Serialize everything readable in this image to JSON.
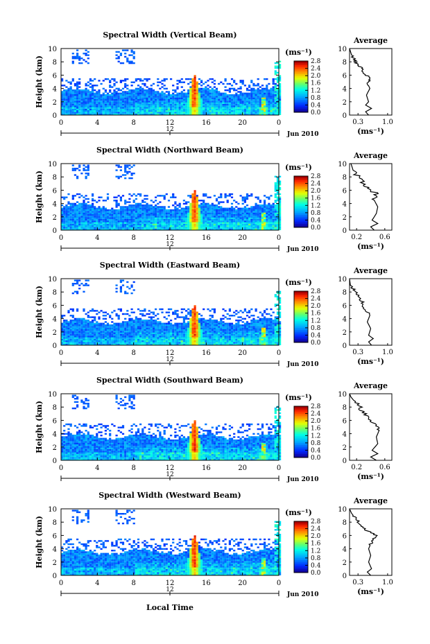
{
  "figure": {
    "xlabel_global": "Local Time",
    "cbar_unit": "(ms⁻¹)",
    "avg_title": "Average",
    "avg_xlabel": "(ms⁻¹)",
    "ylabel": "Height (km)"
  },
  "chart_data": [
    {
      "type": "heatmap",
      "title": "Spectral Width (Vertical Beam)",
      "x": {
        "ticks": [
          "0",
          "4",
          "8",
          "12",
          "16",
          "20",
          "0"
        ],
        "range": [
          0,
          24
        ],
        "unit": "hour"
      },
      "y": {
        "ticks": [
          0,
          2,
          4,
          6,
          8,
          10
        ],
        "range": [
          0,
          10
        ]
      },
      "date_ticks": [
        "12"
      ],
      "date_suffix": "Jun 2010",
      "colorbar": {
        "ticks": [
          "2.8",
          "2.4",
          "2.0",
          "1.6",
          "1.2",
          "0.8",
          "0.4",
          "0.0"
        ],
        "range": [
          0,
          2.8
        ]
      },
      "average": {
        "title": "Average",
        "xticks": [
          "0.3",
          "1.0"
        ],
        "xlim": [
          0.1,
          1.1
        ],
        "ylim": [
          0,
          10
        ],
        "profile": [
          [
            0.55,
            0.0
          ],
          [
            0.48,
            0.5
          ],
          [
            0.62,
            1.0
          ],
          [
            0.48,
            1.5
          ],
          [
            0.55,
            2.0
          ],
          [
            0.5,
            3.0
          ],
          [
            0.58,
            4.0
          ],
          [
            0.52,
            4.8
          ],
          [
            0.6,
            5.5
          ],
          [
            0.45,
            6.2
          ],
          [
            0.4,
            7.0
          ],
          [
            0.3,
            7.5
          ],
          [
            0.22,
            8.2
          ],
          [
            0.15,
            9.0
          ],
          [
            0.1,
            10.0
          ]
        ]
      }
    },
    {
      "type": "heatmap",
      "title": "Spectral Width (Northward Beam)",
      "x": {
        "ticks": [
          "0",
          "4",
          "8",
          "12",
          "16",
          "20",
          "0"
        ],
        "range": [
          0,
          24
        ],
        "unit": "hour"
      },
      "y": {
        "ticks": [
          0,
          2,
          4,
          6,
          8,
          10
        ],
        "range": [
          0,
          10
        ]
      },
      "date_ticks": [
        "12"
      ],
      "date_suffix": "Jun 2010",
      "colorbar": {
        "ticks": [
          "2.8",
          "2.4",
          "2.0",
          "1.6",
          "1.2",
          "0.8",
          "0.4",
          "0.0"
        ],
        "range": [
          0,
          2.8
        ]
      },
      "average": {
        "title": "Average",
        "xticks": [
          "0.2",
          "0.6"
        ],
        "xlim": [
          0.1,
          0.7
        ],
        "ylim": [
          0,
          10
        ],
        "profile": [
          [
            0.45,
            0.0
          ],
          [
            0.4,
            0.5
          ],
          [
            0.5,
            1.0
          ],
          [
            0.42,
            1.5
          ],
          [
            0.48,
            2.5
          ],
          [
            0.5,
            3.5
          ],
          [
            0.45,
            4.5
          ],
          [
            0.48,
            5.5
          ],
          [
            0.35,
            6.3
          ],
          [
            0.3,
            7.0
          ],
          [
            0.22,
            8.0
          ],
          [
            0.15,
            9.0
          ],
          [
            0.12,
            10.0
          ]
        ]
      }
    },
    {
      "type": "heatmap",
      "title": "Spectral Width (Eastward Beam)",
      "x": {
        "ticks": [
          "0",
          "4",
          "8",
          "12",
          "16",
          "20",
          "0"
        ],
        "range": [
          0,
          24
        ],
        "unit": "hour"
      },
      "y": {
        "ticks": [
          0,
          2,
          4,
          6,
          8,
          10
        ],
        "range": [
          0,
          10
        ]
      },
      "date_ticks": [
        "12"
      ],
      "date_suffix": "Jun 2010",
      "colorbar": {
        "ticks": [
          "2.8",
          "2.4",
          "2.0",
          "1.6",
          "1.2",
          "0.8",
          "0.4",
          "0.0"
        ],
        "range": [
          0,
          2.8
        ]
      },
      "average": {
        "title": "Average",
        "xticks": [
          "0.3",
          "1.0"
        ],
        "xlim": [
          0.1,
          1.1
        ],
        "ylim": [
          0,
          10
        ],
        "profile": [
          [
            0.62,
            0.0
          ],
          [
            0.55,
            0.5
          ],
          [
            0.66,
            1.0
          ],
          [
            0.55,
            1.5
          ],
          [
            0.6,
            2.5
          ],
          [
            0.52,
            3.5
          ],
          [
            0.58,
            4.5
          ],
          [
            0.45,
            5.5
          ],
          [
            0.4,
            6.5
          ],
          [
            0.3,
            7.5
          ],
          [
            0.22,
            8.3
          ],
          [
            0.12,
            9.0
          ],
          [
            0.1,
            10.0
          ]
        ]
      }
    },
    {
      "type": "heatmap",
      "title": "Spectral Width (Southward Beam)",
      "x": {
        "ticks": [
          "0",
          "4",
          "8",
          "12",
          "16",
          "20",
          "0"
        ],
        "range": [
          0,
          24
        ],
        "unit": "hour"
      },
      "y": {
        "ticks": [
          0,
          2,
          4,
          6,
          8,
          10
        ],
        "range": [
          0,
          10
        ]
      },
      "date_ticks": [
        "12"
      ],
      "date_suffix": "Jun 2010",
      "colorbar": {
        "ticks": [
          "2.8",
          "2.4",
          "2.0",
          "1.6",
          "1.2",
          "0.8",
          "0.4",
          "0.0"
        ],
        "range": [
          0,
          2.8
        ]
      },
      "average": {
        "title": "Average",
        "xticks": [
          "0.2",
          "0.6"
        ],
        "xlim": [
          0.1,
          0.7
        ],
        "ylim": [
          0,
          10
        ],
        "profile": [
          [
            0.48,
            0.0
          ],
          [
            0.4,
            0.5
          ],
          [
            0.5,
            1.0
          ],
          [
            0.42,
            1.5
          ],
          [
            0.5,
            2.5
          ],
          [
            0.48,
            3.5
          ],
          [
            0.52,
            4.5
          ],
          [
            0.45,
            5.5
          ],
          [
            0.35,
            6.5
          ],
          [
            0.28,
            7.5
          ],
          [
            0.2,
            8.5
          ],
          [
            0.12,
            9.5
          ],
          [
            0.1,
            10.0
          ]
        ]
      }
    },
    {
      "type": "heatmap",
      "title": "Spectral Width (Westward Beam)",
      "x": {
        "ticks": [
          "0",
          "4",
          "8",
          "12",
          "16",
          "20",
          "0"
        ],
        "range": [
          0,
          24
        ],
        "unit": "hour"
      },
      "y": {
        "ticks": [
          0,
          2,
          4,
          6,
          8,
          10
        ],
        "range": [
          0,
          10
        ]
      },
      "date_ticks": [
        "12"
      ],
      "date_suffix": "Jun 2010",
      "colorbar": {
        "ticks": [
          "2.8",
          "2.4",
          "2.0",
          "1.6",
          "1.2",
          "0.8",
          "0.4",
          "0.0"
        ],
        "range": [
          0,
          2.8
        ]
      },
      "average": {
        "title": "Average",
        "xticks": [
          "0.3",
          "1.0"
        ],
        "xlim": [
          0.1,
          1.1
        ],
        "ylim": [
          0,
          10
        ],
        "profile": [
          [
            0.6,
            0.0
          ],
          [
            0.52,
            0.5
          ],
          [
            0.62,
            1.0
          ],
          [
            0.55,
            2.0
          ],
          [
            0.6,
            3.0
          ],
          [
            0.55,
            4.0
          ],
          [
            0.62,
            5.0
          ],
          [
            0.72,
            6.0
          ],
          [
            0.5,
            6.8
          ],
          [
            0.38,
            7.5
          ],
          [
            0.25,
            8.5
          ],
          [
            0.15,
            9.3
          ],
          [
            0.1,
            10.0
          ]
        ]
      }
    }
  ]
}
